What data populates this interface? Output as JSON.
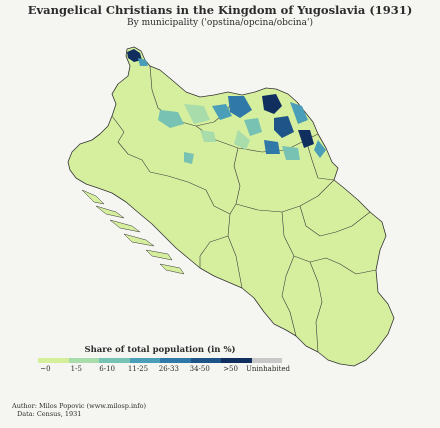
{
  "title": "Evangelical Christians in the Kingdom of Yugoslavia (1931)",
  "subtitle": "By municipality ('opstina/opcina/obcina')",
  "legend": {
    "title": "Share of total population (in %)",
    "items": [
      {
        "label": "~0",
        "color": "#d4ee9a"
      },
      {
        "label": "1-5",
        "color": "#a9dcab"
      },
      {
        "label": "6-10",
        "color": "#77c2b2"
      },
      {
        "label": "11-25",
        "color": "#4a9eb8"
      },
      {
        "label": "26-33",
        "color": "#2f78a8"
      },
      {
        "label": "34-50",
        "color": "#1f5488"
      },
      {
        "label": ">50",
        "color": "#102f5e"
      },
      {
        "label": "Uninhabited",
        "color": "#c8c8c8"
      }
    ]
  },
  "credits": {
    "author": "Author: Milos Popovic (www.milosp.info)",
    "data": "Data: Census, 1931"
  },
  "colors": {
    "background": "#f5f5f2",
    "base_fill": "#d6ef9e",
    "border": "#3b3b3b"
  }
}
